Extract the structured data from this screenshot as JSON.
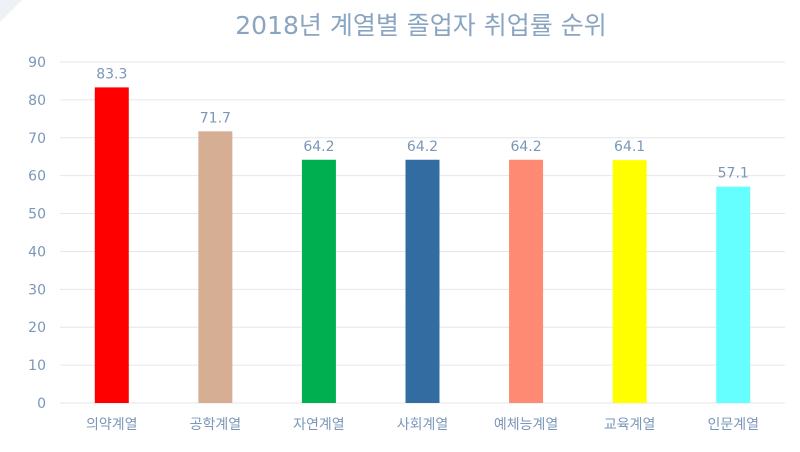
{
  "chart_data": {
    "type": "bar",
    "title": "2018년 계열별 졸업자 취업률 순위",
    "categories": [
      "의약계열",
      "공학계열",
      "자연계열",
      "사회계열",
      "예체능계열",
      "교육계열",
      "인문계열"
    ],
    "values": [
      83.3,
      71.7,
      64.2,
      64.2,
      64.2,
      64.1,
      57.1
    ],
    "value_labels": [
      "83.3",
      "71.7",
      "64.2",
      "64.2",
      "64.2",
      "64.1",
      "57.1"
    ],
    "colors": [
      "#ff0000",
      "#d5ae94",
      "#00b050",
      "#326ca1",
      "#ff8a73",
      "#ffff00",
      "#66ffff"
    ],
    "ylim": [
      0,
      90
    ],
    "yticks": [
      0,
      10,
      20,
      30,
      40,
      50,
      60,
      70,
      80,
      90
    ],
    "xlabel": "",
    "ylabel": "",
    "grid": true,
    "legend": "none"
  },
  "colors": {
    "title": "#8aa5c2",
    "tick": "#7a97b8",
    "value_label": "#7a97b8",
    "grid": "#e6e6e6"
  }
}
